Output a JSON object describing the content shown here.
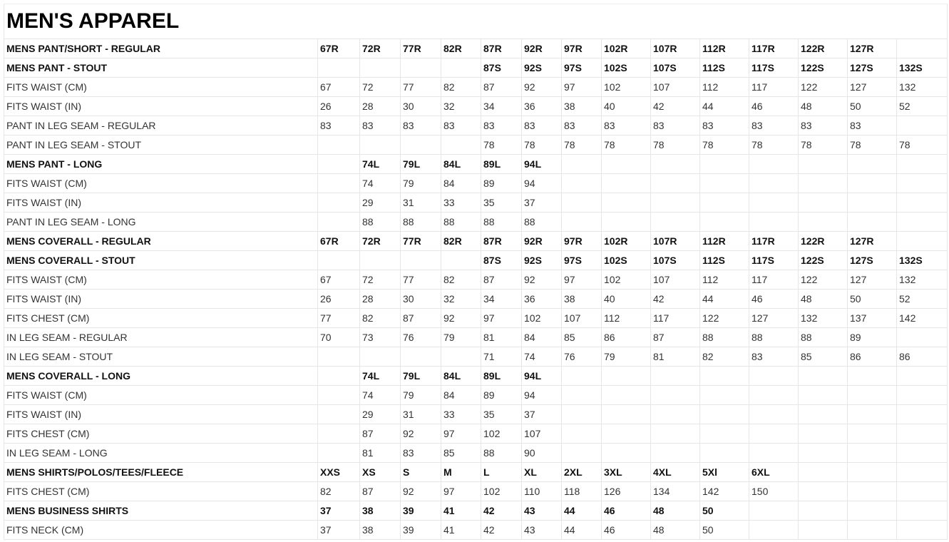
{
  "title": "MEN'S APPAREL",
  "rows": [
    {
      "bold": true,
      "cells": [
        "MENS PANT/SHORT - REGULAR",
        "67R",
        "72R",
        "77R",
        "82R",
        "87R",
        "92R",
        "97R",
        "102R",
        "107R",
        "112R",
        "117R",
        "122R",
        "127R",
        ""
      ]
    },
    {
      "bold": true,
      "cells": [
        "MENS PANT - STOUT",
        "",
        "",
        "",
        "",
        "87S",
        "92S",
        "97S",
        "102S",
        "107S",
        "112S",
        "117S",
        "122S",
        "127S",
        "132S"
      ]
    },
    {
      "bold": false,
      "cells": [
        "FITS WAIST (CM)",
        "67",
        "72",
        "77",
        "82",
        "87",
        "92",
        "97",
        "102",
        "107",
        "112",
        "117",
        "122",
        "127",
        "132"
      ]
    },
    {
      "bold": false,
      "cells": [
        "FITS WAIST (IN)",
        "26",
        "28",
        "30",
        "32",
        "34",
        "36",
        "38",
        "40",
        "42",
        "44",
        "46",
        "48",
        "50",
        "52"
      ]
    },
    {
      "bold": false,
      "cells": [
        "PANT IN LEG SEAM - REGULAR",
        "83",
        "83",
        "83",
        "83",
        "83",
        "83",
        "83",
        "83",
        "83",
        "83",
        "83",
        "83",
        "83",
        ""
      ]
    },
    {
      "bold": false,
      "cells": [
        "PANT IN LEG SEAM - STOUT",
        "",
        "",
        "",
        "",
        "78",
        "78",
        "78",
        "78",
        "78",
        "78",
        "78",
        "78",
        "78",
        "78"
      ]
    },
    {
      "bold": true,
      "cells": [
        "MENS PANT - LONG",
        "",
        "74L",
        "79L",
        "84L",
        "89L",
        "94L",
        "",
        "",
        "",
        "",
        "",
        "",
        "",
        ""
      ]
    },
    {
      "bold": false,
      "cells": [
        "FITS WAIST (CM)",
        "",
        "74",
        "79",
        "84",
        "89",
        "94",
        "",
        "",
        "",
        "",
        "",
        "",
        "",
        ""
      ]
    },
    {
      "bold": false,
      "cells": [
        "FITS WAIST (IN)",
        "",
        "29",
        "31",
        "33",
        "35",
        "37",
        "",
        "",
        "",
        "",
        "",
        "",
        "",
        ""
      ]
    },
    {
      "bold": false,
      "cells": [
        "PANT IN LEG SEAM - LONG",
        "",
        "88",
        "88",
        "88",
        "88",
        "88",
        "",
        "",
        "",
        "",
        "",
        "",
        "",
        ""
      ]
    },
    {
      "bold": true,
      "cells": [
        "MENS COVERALL - REGULAR",
        "67R",
        "72R",
        "77R",
        "82R",
        "87R",
        "92R",
        "97R",
        "102R",
        "107R",
        "112R",
        "117R",
        "122R",
        "127R",
        ""
      ]
    },
    {
      "bold": true,
      "cells": [
        "MENS COVERALL - STOUT",
        "",
        "",
        "",
        "",
        "87S",
        "92S",
        "97S",
        "102S",
        "107S",
        "112S",
        "117S",
        "122S",
        "127S",
        "132S"
      ]
    },
    {
      "bold": false,
      "cells": [
        "FITS WAIST (CM)",
        "67",
        "72",
        "77",
        "82",
        "87",
        "92",
        "97",
        "102",
        "107",
        "112",
        "117",
        "122",
        "127",
        "132"
      ]
    },
    {
      "bold": false,
      "cells": [
        "FITS WAIST (IN)",
        "26",
        "28",
        "30",
        "32",
        "34",
        "36",
        "38",
        "40",
        "42",
        "44",
        "46",
        "48",
        "50",
        "52"
      ]
    },
    {
      "bold": false,
      "cells": [
        "FITS CHEST (CM)",
        "77",
        "82",
        "87",
        "92",
        "97",
        "102",
        "107",
        "112",
        "117",
        "122",
        "127",
        "132",
        "137",
        "142"
      ]
    },
    {
      "bold": false,
      "cells": [
        "IN LEG SEAM - REGULAR",
        "70",
        "73",
        "76",
        "79",
        "81",
        "84",
        "85",
        "86",
        "87",
        "88",
        "88",
        "88",
        "89",
        ""
      ]
    },
    {
      "bold": false,
      "cells": [
        "IN LEG SEAM - STOUT",
        "",
        "",
        "",
        "",
        "71",
        "74",
        "76",
        "79",
        "81",
        "82",
        "83",
        "85",
        "86",
        "86"
      ]
    },
    {
      "bold": true,
      "cells": [
        "MENS COVERALL - LONG",
        "",
        "74L",
        "79L",
        "84L",
        "89L",
        "94L",
        "",
        "",
        "",
        "",
        "",
        "",
        "",
        ""
      ]
    },
    {
      "bold": false,
      "cells": [
        "FITS WAIST (CM)",
        "",
        "74",
        "79",
        "84",
        "89",
        "94",
        "",
        "",
        "",
        "",
        "",
        "",
        "",
        ""
      ]
    },
    {
      "bold": false,
      "cells": [
        "FITS WAIST (IN)",
        "",
        "29",
        "31",
        "33",
        "35",
        "37",
        "",
        "",
        "",
        "",
        "",
        "",
        "",
        ""
      ]
    },
    {
      "bold": false,
      "cells": [
        "FITS CHEST (CM)",
        "",
        "87",
        "92",
        "97",
        "102",
        "107",
        "",
        "",
        "",
        "",
        "",
        "",
        "",
        ""
      ]
    },
    {
      "bold": false,
      "cells": [
        "IN LEG SEAM - LONG",
        "",
        "81",
        "83",
        "85",
        "88",
        "90",
        "",
        "",
        "",
        "",
        "",
        "",
        "",
        ""
      ]
    },
    {
      "bold": true,
      "cells": [
        "MENS SHIRTS/POLOS/TEES/FLEECE",
        "XXS",
        "XS",
        "S",
        "M",
        "L",
        "XL",
        "2XL",
        "3XL",
        "4XL",
        "5Xl",
        "6XL",
        "",
        "",
        ""
      ]
    },
    {
      "bold": false,
      "cells": [
        "FITS CHEST (CM)",
        "82",
        "87",
        "92",
        "97",
        "102",
        "110",
        "118",
        "126",
        "134",
        "142",
        "150",
        "",
        "",
        ""
      ]
    },
    {
      "bold": true,
      "cells": [
        "MENS BUSINESS SHIRTS",
        "37",
        "38",
        "39",
        "41",
        "42",
        "43",
        "44",
        "46",
        "48",
        "50",
        "",
        "",
        "",
        ""
      ]
    },
    {
      "bold": false,
      "cells": [
        "FITS NECK (CM)",
        "37",
        "38",
        "39",
        "41",
        "42",
        "43",
        "44",
        "46",
        "48",
        "50",
        "",
        "",
        "",
        ""
      ]
    }
  ]
}
